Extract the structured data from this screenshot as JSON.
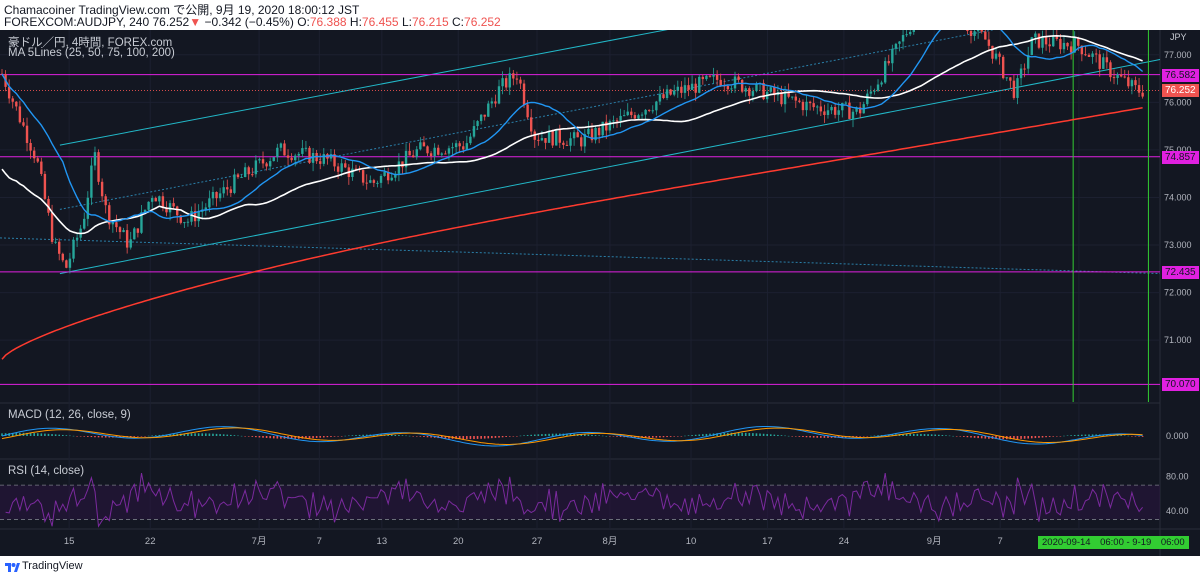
{
  "header": {
    "line1": "Chamacoiner TradingView.com で公開, 9月 19, 2020 18:00:12 JST",
    "symbol": "FOREXCOM:AUDJPY, 240",
    "last": "76.252",
    "arrow": "▼",
    "change": "−0.342 (−0.45%)",
    "o_label": "O:",
    "o_val": "76.388",
    "h_label": "H:",
    "h_val": "76.455",
    "l_label": "L:",
    "l_val": "76.215",
    "c_label": "C:",
    "c_val": "76.252"
  },
  "legend": {
    "main_title": "豪ドル／円, 4時間, FOREX.com",
    "ma_title": "MA 5Lines (25, 50, 75, 100, 200)",
    "macd_title": "MACD (12, 26, close, 9)",
    "rsi_title": "RSI (14, close)",
    "currency": "JPY"
  },
  "price_labels": [
    {
      "value": "76.582",
      "kind": "magenta"
    },
    {
      "value": "76.252",
      "kind": "last"
    },
    {
      "value": "74.857",
      "kind": "magenta"
    },
    {
      "value": "72.435",
      "kind": "magenta"
    },
    {
      "value": "70.070",
      "kind": "magenta"
    }
  ],
  "date_range": "2020-09-14　06:00 - 9-19　06:00",
  "footer": {
    "brand": "TradingView"
  },
  "colors": {
    "background": "#131722",
    "up": "#26a69a",
    "down": "#ef5350",
    "channel": "#22b8c8",
    "magenta": "#e020e0",
    "green_line": "#32cd32",
    "ma_blue": "#2196f3",
    "ma_white": "#ffffff",
    "ma_red": "#ff3b2f",
    "rsi": "#7b2a9e"
  },
  "chart_data": {
    "type": "candlestick",
    "symbol": "FOREXCOM:AUDJPY",
    "interval": "240",
    "price_axis": {
      "ticks": [
        "77.000",
        "76.000",
        "75.000",
        "74.000",
        "73.000",
        "72.000",
        "71.000"
      ],
      "ylim": [
        69.7,
        77.5
      ]
    },
    "x_ticks": [
      "15",
      "22",
      "7月",
      "7",
      "13",
      "20",
      "27",
      "8月",
      "10",
      "17",
      "24",
      "9月",
      "7",
      "14"
    ],
    "horizontal_levels": [
      76.582,
      74.857,
      72.435,
      70.07
    ],
    "price_path": [
      [
        0,
        76.6
      ],
      [
        0.03,
        74.8
      ],
      [
        0.045,
        73.0
      ],
      [
        0.055,
        72.5
      ],
      [
        0.07,
        73.5
      ],
      [
        0.08,
        74.9
      ],
      [
        0.09,
        73.7
      ],
      [
        0.11,
        73.0
      ],
      [
        0.13,
        74.1
      ],
      [
        0.16,
        73.5
      ],
      [
        0.2,
        74.3
      ],
      [
        0.24,
        75.0
      ],
      [
        0.28,
        74.8
      ],
      [
        0.32,
        74.3
      ],
      [
        0.36,
        75.0
      ],
      [
        0.4,
        75.1
      ],
      [
        0.43,
        76.3
      ],
      [
        0.445,
        76.6
      ],
      [
        0.46,
        75.3
      ],
      [
        0.5,
        75.2
      ],
      [
        0.54,
        75.7
      ],
      [
        0.58,
        76.2
      ],
      [
        0.62,
        76.5
      ],
      [
        0.66,
        76.2
      ],
      [
        0.7,
        75.9
      ],
      [
        0.74,
        75.8
      ],
      [
        0.77,
        77.0
      ],
      [
        0.8,
        78.3
      ],
      [
        0.83,
        77.7
      ],
      [
        0.85,
        77.3
      ],
      [
        0.875,
        76.2
      ],
      [
        0.89,
        77.3
      ],
      [
        0.93,
        77.2
      ],
      [
        0.96,
        76.6
      ],
      [
        0.98,
        76.25
      ]
    ],
    "macd_ticks": [
      "0.000"
    ],
    "rsi_ticks": [
      "80.00",
      "40.00"
    ],
    "rsi_levels": [
      70,
      30
    ]
  }
}
